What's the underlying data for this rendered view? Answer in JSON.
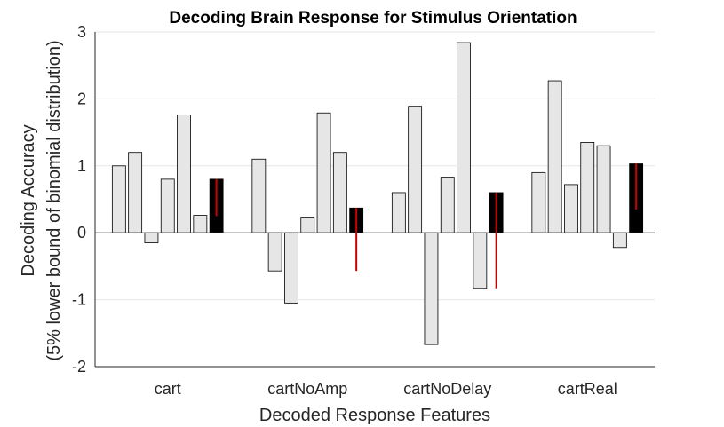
{
  "chart_data": {
    "type": "bar",
    "title": "Decoding Brain Response for Stimulus Orientation",
    "xlabel": "Decoded Response Features",
    "ylabel": "Decoding Accuracy",
    "ylabel2": "(5% lower bound of binomial distribution)",
    "categories": [
      "cart",
      "cartNoAmp",
      "cartNoDelay",
      "cartReal"
    ],
    "ylim": [
      -2,
      3
    ],
    "yticks": [
      -2,
      -1,
      0,
      1,
      2,
      3
    ],
    "grid": true,
    "colors": {
      "subject_bar": "#e6e6e6",
      "mean_bar": "#000000",
      "error_bar": "#cc0000",
      "bar_edge": "#000000"
    },
    "groups": [
      {
        "category": "cart",
        "subject_values": [
          1.0,
          1.2,
          -0.15,
          0.8,
          1.76,
          0.26
        ],
        "mean": 0.8,
        "error_low": 0.25,
        "error_high": 0.8
      },
      {
        "category": "cartNoAmp",
        "subject_values": [
          1.1,
          -0.57,
          -1.05,
          0.22,
          1.79,
          1.2
        ],
        "mean": 0.37,
        "error_low": -0.57,
        "error_high": 0.37
      },
      {
        "category": "cartNoDelay",
        "subject_values": [
          0.6,
          1.89,
          -1.67,
          0.83,
          2.84,
          -0.83
        ],
        "mean": 0.6,
        "error_low": -0.83,
        "error_high": 0.6
      },
      {
        "category": "cartReal",
        "subject_values": [
          0.9,
          2.27,
          0.72,
          1.35,
          1.3,
          -0.22
        ],
        "mean": 1.03,
        "error_low": 0.35,
        "error_high": 1.03
      }
    ]
  }
}
